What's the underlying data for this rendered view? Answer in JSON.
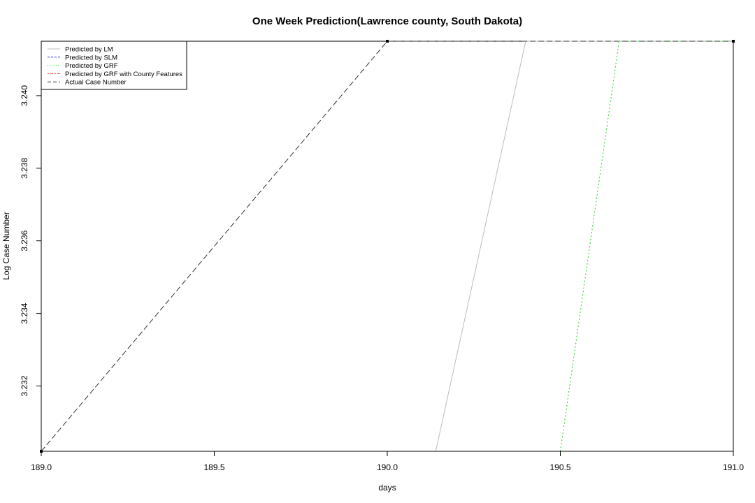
{
  "chart_data": {
    "type": "line",
    "title": "One Week Prediction(Lawrence county, South Dakota)",
    "xlabel": "days",
    "ylabel": "Log Case Number",
    "xlim": [
      189.0,
      191.0
    ],
    "ylim": [
      3.2302,
      3.2415
    ],
    "x_ticks": [
      189.0,
      189.5,
      190.0,
      190.5,
      191.0
    ],
    "x_tick_labels": [
      "189.0",
      "189.5",
      "190.0",
      "190.5",
      "191.0"
    ],
    "y_ticks": [
      3.232,
      3.234,
      3.236,
      3.238,
      3.24
    ],
    "y_tick_labels": [
      "3.232",
      "3.234",
      "3.236",
      "3.238",
      "3.240"
    ],
    "grid": false,
    "legend_position": "top-left",
    "series": [
      {
        "name": "Predicted by LM",
        "color": "#bbbbbb",
        "dash": "solid",
        "points": [
          [
            190.14,
            3.2302
          ],
          [
            190.4,
            3.2415
          ],
          [
            191.0,
            3.2415
          ]
        ]
      },
      {
        "name": "Predicted by SLM",
        "color": "#3333ff",
        "dash": "dashed",
        "points": []
      },
      {
        "name": "Predicted by GRF",
        "color": "#22cc22",
        "dash": "dotted",
        "points": [
          [
            190.5,
            3.2302
          ],
          [
            190.67,
            3.2415
          ],
          [
            191.0,
            3.2415
          ]
        ]
      },
      {
        "name": "Predicted by GRF with County Features",
        "color": "#ff3333",
        "dash": "dotdash",
        "points": []
      },
      {
        "name": "Actual Case Number",
        "color": "#333333",
        "dash": "longdash",
        "points": [
          [
            189.0,
            3.2302
          ],
          [
            190.0,
            3.2415
          ],
          [
            191.0,
            3.2415
          ]
        ],
        "markers": [
          [
            189.0,
            3.2302
          ],
          [
            190.0,
            3.2415
          ],
          [
            191.0,
            3.2415
          ]
        ]
      }
    ]
  }
}
